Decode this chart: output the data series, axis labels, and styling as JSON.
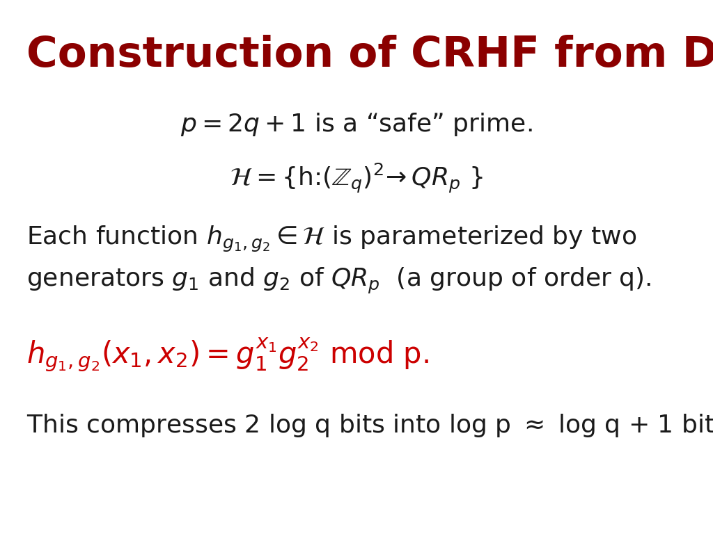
{
  "title": "Construction of CRHF from Discrete Log",
  "title_color": "#8B0000",
  "title_fontsize": 44,
  "bg_color": "#FFFFFF",
  "red_color": "#CC0000",
  "dark_color": "#1a1a1a",
  "math_fontsize": 26,
  "body_fontsize": 26,
  "formula_fontsize": 30,
  "compress_fontsize": 26
}
